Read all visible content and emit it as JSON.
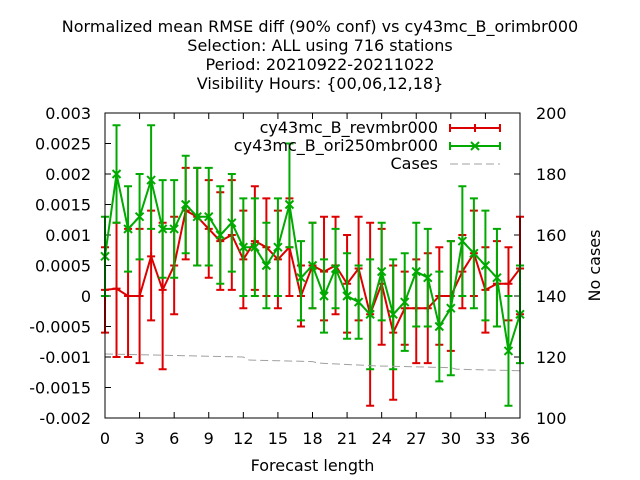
{
  "chart_data": {
    "type": "line",
    "title_lines": [
      "Normalized mean RMSE diff (90% conf) vs cy43mc_B_orimbr000",
      "Selection: ALL using   716 stations",
      "Period: 20210922-20211022",
      "Visibility   Hours: {00,06,12,18}"
    ],
    "xlabel": "Forecast length",
    "ylabel_right": "No cases",
    "xlim": [
      0,
      36
    ],
    "ylim": [
      -0.002,
      0.003
    ],
    "y2lim": [
      100,
      200
    ],
    "xticks": [
      0,
      3,
      6,
      9,
      12,
      15,
      18,
      21,
      24,
      27,
      30,
      33,
      36
    ],
    "yticks": [
      "-0.002",
      "-0.0015",
      "-0.001",
      "-0.0005",
      "0",
      "0.0005",
      "0.001",
      "0.0015",
      "0.002",
      "0.0025",
      "0.003"
    ],
    "y2ticks": [
      "100",
      "120",
      "140",
      "160",
      "180",
      "200"
    ],
    "x": [
      0,
      1,
      2,
      3,
      4,
      5,
      6,
      7,
      8,
      9,
      10,
      11,
      12,
      13,
      14,
      15,
      16,
      17,
      18,
      19,
      20,
      21,
      22,
      23,
      24,
      25,
      26,
      27,
      28,
      29,
      30,
      31,
      32,
      33,
      34,
      35,
      36
    ],
    "series": [
      {
        "name": "cy43mc_B_revmbr000",
        "color": "#dd0000",
        "marker": "plus",
        "values": [
          0.0001,
          0.00012,
          0.0,
          0.0,
          0.00065,
          0.0001,
          0.0005,
          0.0014,
          0.0013,
          0.0011,
          0.0009,
          0.001,
          0.0006,
          0.0009,
          0.0008,
          0.0006,
          0.0008,
          0.0,
          0.0005,
          0.0004,
          0.0005,
          0.0002,
          0.00045,
          -0.0003,
          0.0002,
          -0.0006,
          -0.0002,
          -0.0002,
          -0.0002,
          0.0,
          0.0,
          0.0004,
          0.0007,
          0.0001,
          0.0002,
          0.0002,
          0.00045
        ],
        "err_low": [
          -0.0006,
          -0.001,
          -0.001,
          -0.0011,
          -0.0004,
          -0.0012,
          -0.0003,
          0.0006,
          0.0005,
          0.0003,
          0.0001,
          0.0001,
          -0.0002,
          0.0001,
          0.0,
          -0.0002,
          0.0,
          -0.0005,
          -0.0002,
          -0.0004,
          -0.0003,
          -0.0006,
          -0.0004,
          -0.0018,
          -0.0008,
          -0.0017,
          -0.0008,
          -0.0011,
          -0.0011,
          -0.0008,
          -0.0009,
          -0.0002,
          0.0,
          -0.0006,
          -0.0005,
          -0.0004,
          -0.0003
        ],
        "err_high": [
          0.0008,
          0.0012,
          0.0011,
          0.0011,
          0.0014,
          0.0012,
          0.0013,
          0.0021,
          0.0021,
          0.0019,
          0.0017,
          0.0019,
          0.0014,
          0.0018,
          0.0016,
          0.0014,
          0.0016,
          0.0005,
          0.0012,
          0.0013,
          0.0013,
          0.001,
          0.0013,
          0.0012,
          0.0011,
          0.0005,
          0.0004,
          0.0006,
          0.0007,
          0.0008,
          0.0009,
          0.001,
          0.0014,
          0.0008,
          0.0009,
          0.0008,
          0.0013
        ]
      },
      {
        "name": "cy43mc_B_ori250mbr000",
        "color": "#00aa00",
        "marker": "cross",
        "values": [
          0.00065,
          0.002,
          0.0011,
          0.0013,
          0.0019,
          0.0011,
          0.0011,
          0.0015,
          0.0013,
          0.0013,
          0.001,
          0.0012,
          0.0008,
          0.0008,
          0.0005,
          0.0008,
          0.0015,
          0.0003,
          0.0005,
          0.0,
          0.00045,
          0.0,
          -0.0001,
          -0.0003,
          0.0004,
          -0.0003,
          -0.0001,
          0.0004,
          0.0003,
          -0.0005,
          -0.0002,
          0.0009,
          0.0007,
          0.0005,
          0.0003,
          -0.0009,
          -0.0003
        ],
        "err_low": [
          0.0,
          0.0012,
          0.0004,
          0.0006,
          0.0011,
          0.0003,
          0.0003,
          0.0007,
          0.0005,
          0.0005,
          0.0002,
          0.0004,
          0.0,
          0.0,
          -0.0002,
          0.0,
          0.0008,
          -0.0004,
          -0.0002,
          -0.0006,
          -0.0002,
          -0.0007,
          -0.0007,
          -0.0012,
          -0.0004,
          -0.0012,
          -0.0009,
          -0.0005,
          -0.0005,
          -0.0014,
          -0.0013,
          0.0,
          -0.0002,
          -0.0004,
          -0.0005,
          -0.0018,
          -0.0011
        ],
        "err_high": [
          0.0013,
          0.0028,
          0.0018,
          0.002,
          0.0028,
          0.0019,
          0.0019,
          0.0023,
          0.0021,
          0.0021,
          0.0018,
          0.002,
          0.0016,
          0.0016,
          0.0012,
          0.0016,
          0.0025,
          0.0009,
          0.0012,
          0.0006,
          0.0011,
          0.0007,
          0.0005,
          0.0006,
          0.0012,
          0.0006,
          0.0007,
          0.0012,
          0.0011,
          0.0004,
          0.0009,
          0.0018,
          0.0016,
          0.0014,
          0.0011,
          0.0,
          0.0005
        ]
      },
      {
        "name": "Cases",
        "color": "#a0a0a0",
        "axis": "right",
        "style": "dashed",
        "x": [
          0,
          6,
          12,
          12.5,
          18,
          18.5,
          24,
          24.5,
          30,
          30.5,
          36
        ],
        "values": [
          121,
          120.5,
          120,
          119,
          118.5,
          118,
          117,
          117,
          116.5,
          116,
          115.5
        ]
      }
    ],
    "legend_position": "top-right",
    "grid": false
  }
}
